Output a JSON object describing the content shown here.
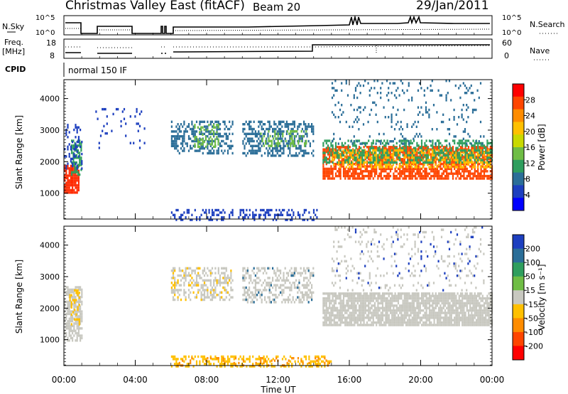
{
  "header": {
    "title": "Christmas Valley East (fitACF)",
    "beam": "Beam 20",
    "date": "29/Jan/2011"
  },
  "panels": {
    "nsky_label": "N.Sky",
    "nsearch_label": "N.Search",
    "freq_label_1": "Freq.",
    "freq_label_2": "[MHz]",
    "nave_label": "Nave",
    "cpid_label": "CPID",
    "cpid_value": "normal 150 IF",
    "nsky_ticks": [
      "10^5",
      "10^0"
    ],
    "nsearch_ticks": [
      "10^5",
      "10^0"
    ],
    "freq_ticks": [
      "18",
      "8"
    ],
    "nave_ticks": [
      "60",
      "0"
    ]
  },
  "chart_data": [
    {
      "type": "heatmap",
      "name": "power",
      "ylabel": "Slant Range [km]",
      "xlabel": "Time UT",
      "y_ticks": [
        1000,
        2000,
        3000,
        4000
      ],
      "ylim": [
        180,
        4600
      ],
      "colorbar": {
        "label": "Power [dB]",
        "ticks": [
          "28",
          "24",
          "20",
          "16",
          "12",
          "8",
          "4"
        ],
        "colors": [
          "#ff0000",
          "#ff4500",
          "#ff8c00",
          "#ffc000",
          "#c8d900",
          "#6fbd45",
          "#2f9e5e",
          "#2b6e98",
          "#1d3fbf",
          "#0000ff"
        ]
      },
      "regions": [
        {
          "t0": 0.0,
          "t1": 0.8,
          "r0": 1000,
          "r1": 1900,
          "color": "#ff2a00",
          "density": 0.85
        },
        {
          "t0": 0.4,
          "t1": 1.0,
          "r0": 1600,
          "r1": 2700,
          "color": "#2f9e5e",
          "density": 0.6
        },
        {
          "t0": 0.0,
          "t1": 1.0,
          "r0": 1800,
          "r1": 3200,
          "color": "#1d3fbf",
          "density": 0.25
        },
        {
          "t0": 6.0,
          "t1": 9.5,
          "r0": 2300,
          "r1": 3300,
          "color": "#2b6e98",
          "density": 0.45
        },
        {
          "t0": 7.3,
          "t1": 8.7,
          "r0": 2500,
          "r1": 3200,
          "color": "#6fbd45",
          "density": 0.35
        },
        {
          "t0": 10.0,
          "t1": 14.0,
          "r0": 2200,
          "r1": 3300,
          "color": "#2b6e98",
          "density": 0.45
        },
        {
          "t0": 11.0,
          "t1": 13.6,
          "r0": 2500,
          "r1": 3000,
          "color": "#6fbd45",
          "density": 0.3
        },
        {
          "t0": 14.5,
          "t1": 24.0,
          "r0": 1500,
          "r1": 2500,
          "color": "#ff4500",
          "density": 0.75
        },
        {
          "t0": 15.0,
          "t1": 24.0,
          "r0": 1800,
          "r1": 2400,
          "color": "#ffc000",
          "density": 0.45
        },
        {
          "t0": 14.5,
          "t1": 24.0,
          "r0": 2000,
          "r1": 2700,
          "color": "#2f9e5e",
          "density": 0.4
        },
        {
          "t0": 15.0,
          "t1": 23.5,
          "r0": 2600,
          "r1": 4600,
          "color": "#2b6e98",
          "density": 0.1
        },
        {
          "t0": 6.0,
          "t1": 14.2,
          "r0": 180,
          "r1": 500,
          "color": "#1d3fbf",
          "density": 0.3
        },
        {
          "t0": 1.5,
          "t1": 4.5,
          "r0": 2400,
          "r1": 3700,
          "color": "#1d3fbf",
          "density": 0.05
        }
      ]
    },
    {
      "type": "heatmap",
      "name": "velocity",
      "ylabel": "Slant Range [km]",
      "xlabel": "Time UT",
      "y_ticks": [
        1000,
        2000,
        3000,
        4000
      ],
      "ylim": [
        180,
        4600
      ],
      "colorbar": {
        "label": "Velocity [m s⁻¹]",
        "ticks": [
          "200",
          "100",
          "50",
          "15",
          "-15",
          "-50",
          "-100",
          "-200"
        ],
        "colors": [
          "#1d3fbf",
          "#2b6e98",
          "#2f9e5e",
          "#6fbd45",
          "#c8c8c0",
          "#ffc000",
          "#ff8c00",
          "#ff4500",
          "#ff0000"
        ]
      },
      "regions": [
        {
          "t0": 0.0,
          "t1": 1.0,
          "r0": 1000,
          "r1": 2700,
          "color": "#c8c8c0",
          "density": 0.7
        },
        {
          "t0": 0.3,
          "t1": 0.9,
          "r0": 1500,
          "r1": 2600,
          "color": "#ffc000",
          "density": 0.3
        },
        {
          "t0": 6.0,
          "t1": 9.5,
          "r0": 2300,
          "r1": 3300,
          "color": "#c8c8c0",
          "density": 0.4
        },
        {
          "t0": 6.0,
          "t1": 9.5,
          "r0": 2300,
          "r1": 3300,
          "color": "#ffc000",
          "density": 0.08
        },
        {
          "t0": 10.0,
          "t1": 14.0,
          "r0": 2200,
          "r1": 3300,
          "color": "#c8c8c0",
          "density": 0.4
        },
        {
          "t0": 10.0,
          "t1": 14.0,
          "r0": 2200,
          "r1": 3300,
          "color": "#2b6e98",
          "density": 0.04
        },
        {
          "t0": 14.5,
          "t1": 24.0,
          "r0": 1500,
          "r1": 2500,
          "color": "#c8c8c0",
          "density": 0.85
        },
        {
          "t0": 15.0,
          "t1": 23.5,
          "r0": 2600,
          "r1": 4600,
          "color": "#c8c8c0",
          "density": 0.1
        },
        {
          "t0": 6.0,
          "t1": 15.0,
          "r0": 180,
          "r1": 500,
          "color": "#ffc000",
          "density": 0.35
        },
        {
          "t0": 6.0,
          "t1": 15.0,
          "r0": 180,
          "r1": 450,
          "color": "#ff8c00",
          "density": 0.12
        },
        {
          "t0": 15.0,
          "t1": 23.5,
          "r0": 2600,
          "r1": 4600,
          "color": "#1d3fbf",
          "density": 0.02
        }
      ]
    }
  ],
  "x_axis": {
    "ticks": [
      "00:00",
      "04:00",
      "08:00",
      "12:00",
      "16:00",
      "20:00",
      "00:00"
    ],
    "tick_hours": [
      0,
      4,
      8,
      12,
      16,
      20,
      24
    ],
    "label": "Time UT"
  }
}
